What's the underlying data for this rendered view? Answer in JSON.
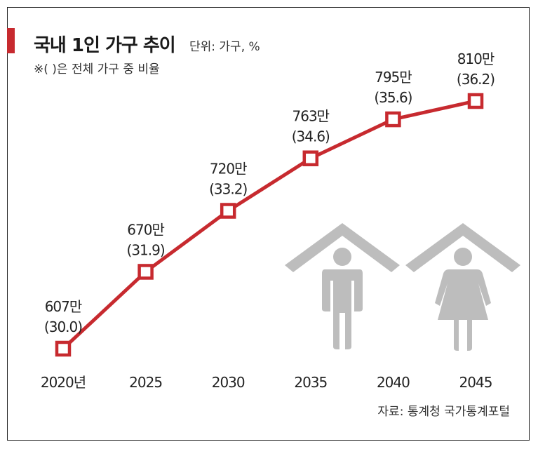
{
  "header": {
    "title": "국내 1인 가구 추이",
    "unit": "단위: 가구, %",
    "note": "※( )은 전체 가구 중 비율"
  },
  "footer": {
    "source": "자료: 통계청 국가통계포털"
  },
  "colors": {
    "accent": "#c72a2f",
    "line": "#c72a2f",
    "icon": "#bdbdbd"
  },
  "chart_data": {
    "type": "line",
    "categories": [
      "2020년",
      "2025",
      "2030",
      "2035",
      "2040",
      "2045"
    ],
    "series": [
      {
        "values": [
          607,
          670,
          720,
          763,
          795,
          810
        ],
        "value_labels": [
          "607만",
          "670만",
          "720만",
          "763만",
          "795만",
          "810만"
        ],
        "ratios": [
          30.0,
          31.9,
          33.2,
          34.6,
          35.6,
          36.2
        ],
        "ratio_labels": [
          "(30.0)",
          "(31.9)",
          "(33.2)",
          "(34.6)",
          "(35.6)",
          "(36.2)"
        ]
      }
    ],
    "icons": [
      "house-man-icon",
      "house-woman-icon"
    ]
  }
}
